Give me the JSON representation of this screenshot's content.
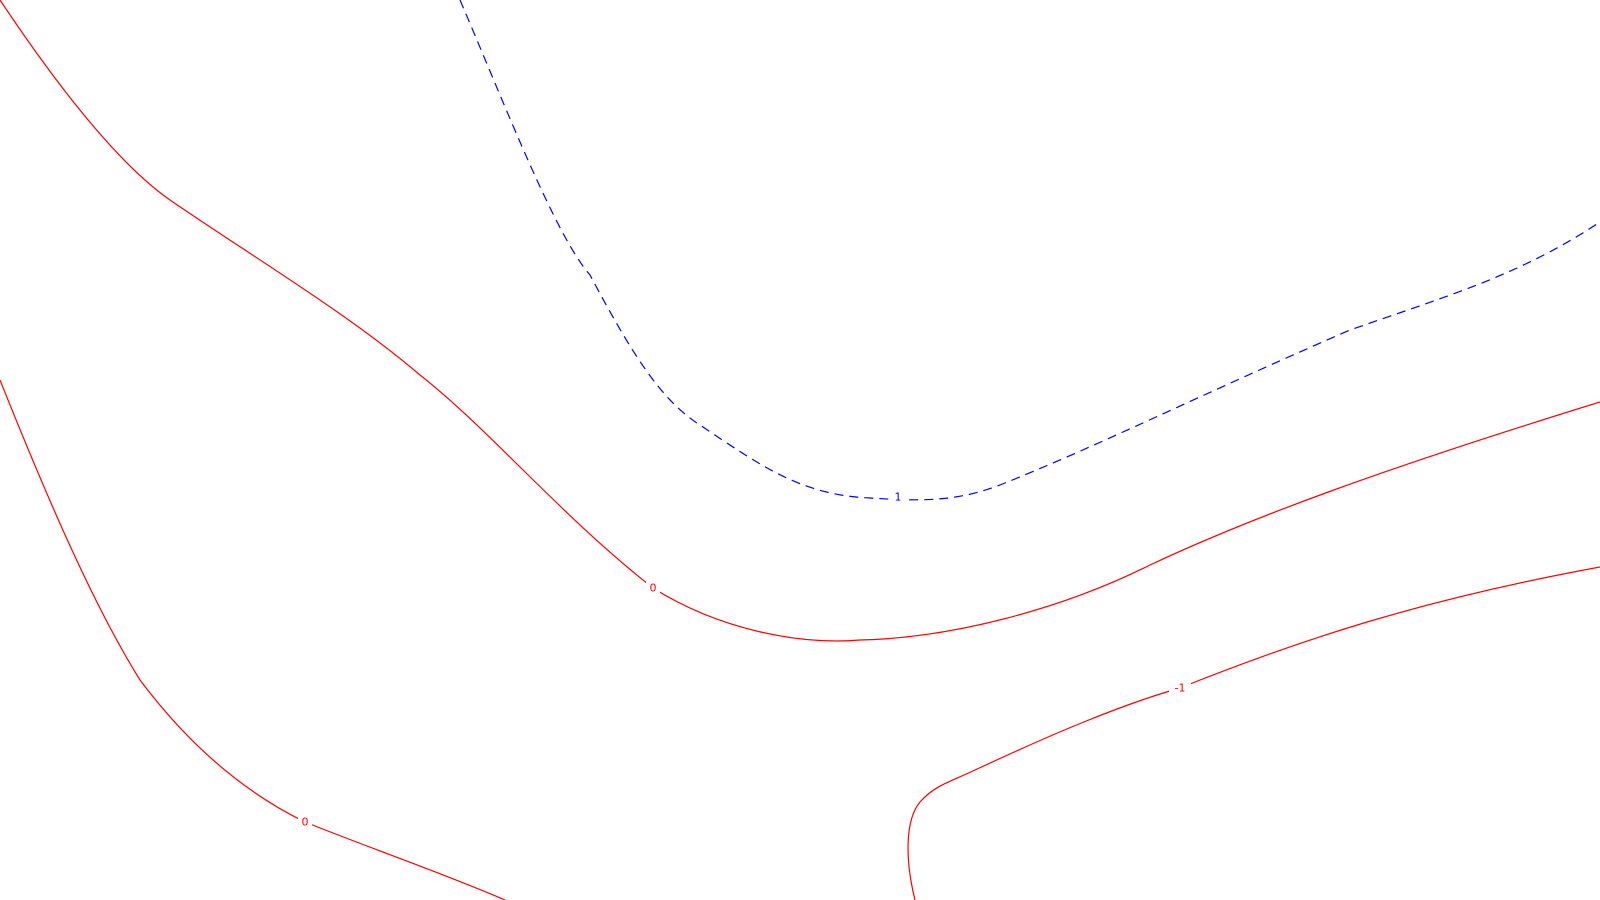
{
  "chart_data": {
    "type": "contour",
    "title": "",
    "xlabel": "",
    "ylabel": "",
    "grid": false,
    "legend": "none",
    "colors": {
      "positive": "#0000ff",
      "zero_or_negative": "#ff0000",
      "background": "#ffffff"
    },
    "contours": [
      {
        "level": 1,
        "label": "1",
        "style": "dashed",
        "color": "#0000ff"
      },
      {
        "level": 0,
        "label": "0",
        "style": "solid",
        "color": "#ff0000"
      },
      {
        "level": 0,
        "label": "0",
        "style": "solid",
        "color": "#ff0000"
      },
      {
        "level": -1,
        "label": "-1",
        "style": "solid",
        "color": "#ff0000"
      }
    ]
  }
}
